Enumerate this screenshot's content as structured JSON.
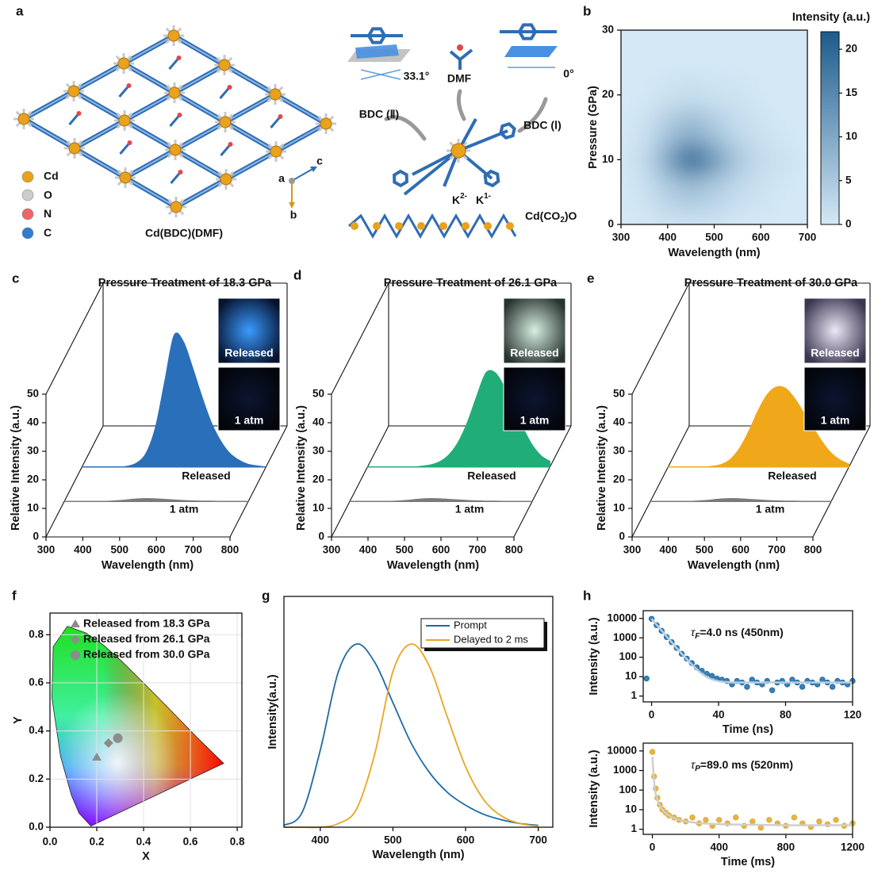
{
  "panel_labels": [
    "a",
    "b",
    "c",
    "d",
    "e",
    "f",
    "g",
    "h"
  ],
  "structure": {
    "legend": [
      "Cd",
      "O",
      "N",
      "C"
    ],
    "framework": "Cd(BDC)(DMF)",
    "axes": [
      "a",
      "b",
      "c"
    ],
    "bdc2": "BDC (Ⅱ)",
    "angle2": "33.1°",
    "dmf": "DMF",
    "bdc1": "BDC (Ⅰ)",
    "angle1": "0°",
    "k2": {
      "base": "K",
      "sup": "2-"
    },
    "k1": {
      "base": "K",
      "sup": "1-"
    },
    "chain": [
      "Cd(CO",
      "2",
      ")O"
    ]
  },
  "chart_data": [
    {
      "type": "heatmap",
      "x_label": "Wavelength (nm)",
      "y_label": "Pressure (GPa)",
      "x": [
        300,
        350,
        400,
        450,
        500,
        550,
        600,
        650,
        700
      ],
      "y": [
        0,
        5,
        10,
        15,
        20,
        25,
        30
      ],
      "z": [
        [
          0,
          0,
          1,
          1,
          1,
          0,
          0,
          0,
          0
        ],
        [
          0,
          1,
          4,
          6,
          4,
          2,
          1,
          0,
          0
        ],
        [
          0,
          2,
          10,
          20,
          12,
          5,
          2,
          1,
          0
        ],
        [
          0,
          1,
          5,
          8,
          5,
          2,
          1,
          0,
          0
        ],
        [
          0,
          0,
          1,
          2,
          1,
          1,
          0,
          0,
          0
        ],
        [
          0,
          0,
          0,
          0,
          0,
          0,
          0,
          0,
          0
        ],
        [
          0,
          0,
          0,
          0,
          0,
          0,
          0,
          0,
          0
        ]
      ],
      "xlim": [
        300,
        700
      ],
      "xticks": [
        300,
        400,
        500,
        600,
        700
      ],
      "ylim": [
        0,
        30
      ],
      "yticks": [
        0,
        10,
        20,
        30
      ],
      "colors": [
        "#d4e8f6",
        "#1c5b8c"
      ],
      "colorbar": {
        "label": "Intensity (a.u.)",
        "lim": [
          0,
          22
        ],
        "ticks": [
          0,
          5,
          10,
          15,
          20
        ]
      }
    },
    {
      "type": "waterfall",
      "title": "Pressure Treatment of 18.3 GPa",
      "x_label": "Wavelength (nm)",
      "y_label": "Relative Intensity (a.u.)",
      "x": [
        300,
        325,
        350,
        375,
        400,
        425,
        450,
        475,
        500,
        525,
        550,
        575,
        600,
        625,
        650,
        675,
        700,
        725,
        750,
        775,
        800
      ],
      "xlim": [
        300,
        800
      ],
      "xticks": [
        300,
        400,
        500,
        600,
        700,
        800
      ],
      "ylim": [
        0,
        50
      ],
      "yticks": [
        0,
        10,
        20,
        30,
        40,
        50
      ],
      "series": [
        {
          "name": "Released",
          "color": "#2a6fba",
          "values": [
            0,
            0,
            0,
            0,
            0,
            0.3,
            1.5,
            5,
            14,
            30,
            46,
            44,
            35,
            25,
            16,
            9.5,
            5,
            2.5,
            1,
            0.4,
            0
          ]
        },
        {
          "name": "1 atm",
          "color": "#7a7a7a",
          "values": [
            0,
            0,
            0,
            0,
            0,
            0.1,
            0.3,
            0.6,
            0.9,
            1,
            0.9,
            0.7,
            0.5,
            0.3,
            0.2,
            0.1,
            0.1,
            0,
            0,
            0,
            0
          ]
        }
      ],
      "insets": [
        "Released",
        "1 atm"
      ]
    },
    {
      "type": "waterfall",
      "title": "Pressure Treatment of 26.1 GPa",
      "x_label": "Wavelength (nm)",
      "y_label": "Relative Intensity (a.u.)",
      "x": [
        300,
        325,
        350,
        375,
        400,
        425,
        450,
        475,
        500,
        525,
        550,
        575,
        600,
        625,
        650,
        675,
        700,
        725,
        750,
        775,
        800
      ],
      "xlim": [
        300,
        800
      ],
      "xticks": [
        300,
        400,
        500,
        600,
        700,
        800
      ],
      "ylim": [
        0,
        50
      ],
      "yticks": [
        0,
        10,
        20,
        30,
        40,
        50
      ],
      "series": [
        {
          "name": "Released",
          "color": "#21ad78",
          "values": [
            0,
            0,
            0,
            0,
            0,
            0,
            0.3,
            0.8,
            2,
            4.5,
            9,
            16,
            25,
            33,
            33,
            28,
            21,
            14,
            8,
            4,
            2
          ]
        },
        {
          "name": "1 atm",
          "color": "#7a7a7a",
          "values": [
            0,
            0,
            0,
            0,
            0,
            0.1,
            0.3,
            0.6,
            0.9,
            1,
            0.9,
            0.7,
            0.5,
            0.3,
            0.2,
            0.1,
            0.1,
            0,
            0,
            0,
            0
          ]
        }
      ],
      "insets": [
        "Released",
        "1 atm"
      ]
    },
    {
      "type": "waterfall",
      "title": "Pressure Treatment of 30.0 GPa",
      "x_label": "Wavelength (nm)",
      "y_label": "Relative Intensity (a.u.)",
      "x": [
        300,
        325,
        350,
        375,
        400,
        425,
        450,
        475,
        500,
        525,
        550,
        575,
        600,
        625,
        650,
        675,
        700,
        725,
        750,
        775,
        800
      ],
      "xlim": [
        300,
        800
      ],
      "xticks": [
        300,
        400,
        500,
        600,
        700,
        800
      ],
      "ylim": [
        0,
        50
      ],
      "yticks": [
        0,
        10,
        20,
        30,
        40,
        50
      ],
      "series": [
        {
          "name": "Released",
          "color": "#f0a81a",
          "values": [
            0,
            0,
            0,
            0,
            0,
            0.3,
            1,
            3,
            7,
            13,
            20,
            25.5,
            28,
            27.5,
            24,
            19,
            14,
            9,
            5,
            2.5,
            1
          ]
        },
        {
          "name": "1 atm",
          "color": "#7a7a7a",
          "values": [
            0,
            0,
            0,
            0,
            0,
            0.1,
            0.3,
            0.6,
            0.9,
            1,
            0.9,
            0.7,
            0.5,
            0.3,
            0.2,
            0.1,
            0.1,
            0,
            0,
            0,
            0
          ]
        }
      ],
      "insets": [
        "Released",
        "1 atm"
      ]
    },
    {
      "type": "scatter",
      "x_label": "X",
      "y_label": "Y",
      "xlim": [
        0,
        0.82
      ],
      "ylim": [
        0,
        0.89
      ],
      "xticks": [
        {
          "value": 0,
          "label": "0.0"
        },
        0.2,
        0.4,
        0.6,
        0.8
      ],
      "yticks": [
        {
          "value": 0,
          "label": "0.0"
        },
        0.2,
        0.4,
        0.6,
        0.8
      ],
      "grid": true,
      "legend": "upper left",
      "series": [
        {
          "name": "Released from 18.3 GPa",
          "marker": "triangle",
          "color": "#8c8c8c",
          "x": [
            0.2
          ],
          "values": [
            0.29
          ]
        },
        {
          "name": "Released from 26.1 GPa",
          "marker": "diamond",
          "color": "#8c8c8c",
          "x": [
            0.25
          ],
          "values": [
            0.35
          ]
        },
        {
          "name": "Released from 30.0 GPa",
          "marker": "circle",
          "color": "#8c8c8c",
          "x": [
            0.29
          ],
          "values": [
            0.37
          ]
        }
      ]
    },
    {
      "type": "line",
      "x_label": "Wavelength (nm)",
      "y_label": "Intensity(a.u.)",
      "x": [
        350,
        375,
        400,
        425,
        450,
        475,
        500,
        525,
        550,
        575,
        600,
        625,
        650,
        675,
        700
      ],
      "xlim": [
        350,
        720
      ],
      "xticks": [
        400,
        500,
        600,
        700
      ],
      "ylim": [
        0,
        1.26
      ],
      "legend": "upper right",
      "series": [
        {
          "name": "Prompt",
          "color": "#1d6aa5",
          "values": [
            0.01,
            0.08,
            0.42,
            0.85,
            1.0,
            0.9,
            0.68,
            0.46,
            0.3,
            0.19,
            0.12,
            0.07,
            0.04,
            0.02,
            0.01
          ]
        },
        {
          "name": "Delayed to 2 ms",
          "color": "#e8a623",
          "values": [
            0,
            0,
            0,
            0.02,
            0.1,
            0.4,
            0.85,
            1.0,
            0.88,
            0.6,
            0.33,
            0.15,
            0.06,
            0.02,
            0.005
          ]
        }
      ]
    },
    {
      "type": "scatter",
      "x_label": "Time (ns)",
      "y_label": "Intensity (a.u.)",
      "log_y": true,
      "xlim": [
        -5,
        120
      ],
      "xticks": [
        0,
        40,
        80,
        120
      ],
      "ylim": [
        0.5,
        25000
      ],
      "yticks": [
        1,
        10,
        100,
        1000,
        10000
      ],
      "annotation": {
        "symbol": "τ",
        "subscript": "F",
        "text": "=4.0 ns (450nm)"
      },
      "series": [
        {
          "style": "points",
          "color": "#1d6aa5",
          "x": [
            -3,
            0,
            3,
            6,
            9,
            12,
            15,
            18,
            21,
            24,
            27,
            30,
            33,
            36,
            39,
            42,
            45,
            48,
            51,
            54,
            57,
            60,
            63,
            66,
            69,
            72,
            75,
            78,
            81,
            84,
            87,
            90,
            93,
            96,
            99,
            102,
            105,
            108,
            111,
            114,
            117,
            120
          ],
          "values": [
            8,
            9500,
            4500,
            2300,
            1100,
            600,
            300,
            150,
            85,
            50,
            30,
            20,
            14,
            11,
            8,
            7,
            6,
            4,
            6,
            5,
            3,
            7,
            5,
            4,
            6,
            2,
            5,
            6,
            4,
            7,
            5,
            3,
            6,
            5,
            4,
            7,
            5,
            3,
            6,
            5,
            4,
            6
          ]
        },
        {
          "style": "line",
          "color": "#b9cfe3",
          "x": [
            0,
            6,
            12,
            18,
            24,
            30,
            36,
            42,
            48,
            54,
            60,
            80,
            100,
            120
          ],
          "values": [
            9505,
            2360,
            589,
            150,
            42.5,
            14.2,
            7.2,
            5.5,
            5.1,
            5,
            5,
            5,
            5,
            5
          ]
        }
      ]
    },
    {
      "type": "scatter",
      "x_label": "Time (ms)",
      "y_label": "Intensity (a.u.)",
      "log_y": true,
      "xlim": [
        -55,
        1200
      ],
      "xticks": [
        0,
        400,
        800,
        1200
      ],
      "ylim": [
        0.55,
        25000
      ],
      "yticks": [
        1,
        10,
        100,
        1000,
        10000
      ],
      "annotation": {
        "symbol": "τ",
        "subscript": "P",
        "text": "=89.0 ms (520nm)"
      },
      "series": [
        {
          "style": "points",
          "color": "#e0a72a",
          "x": [
            0,
            10,
            20,
            30,
            45,
            60,
            80,
            100,
            130,
            160,
            200,
            240,
            280,
            320,
            360,
            400,
            450,
            500,
            550,
            600,
            650,
            700,
            750,
            800,
            850,
            900,
            950,
            1000,
            1050,
            1100,
            1150,
            1200
          ],
          "values": [
            9000,
            500,
            120,
            40,
            18,
            10,
            7,
            5,
            4,
            3,
            2.5,
            4,
            2,
            3,
            1.5,
            3,
            2,
            4,
            1.5,
            2.5,
            1.2,
            3,
            2,
            1.5,
            4,
            2,
            1.3,
            2.5,
            1.8,
            3,
            1.5,
            2
          ]
        },
        {
          "style": "line",
          "color": "#cfcfcf",
          "x": [
            0,
            10,
            20,
            40,
            60,
            100,
            150,
            200,
            300,
            400,
            600,
            800,
            1000,
            1200
          ],
          "values": [
            5000,
            300,
            60,
            20,
            10,
            5,
            3.2,
            2.5,
            2,
            1.8,
            1.7,
            1.6,
            1.6,
            1.6
          ]
        }
      ]
    }
  ]
}
